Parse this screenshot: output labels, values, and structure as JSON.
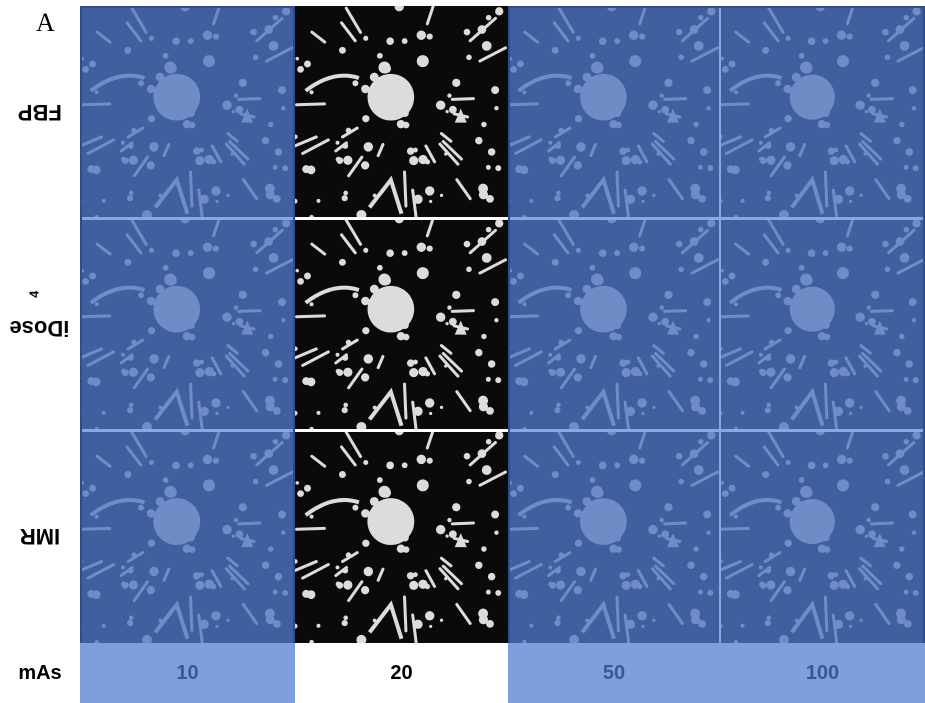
{
  "panel_letter": "A",
  "rows": [
    {
      "label": "FBP",
      "sup": ""
    },
    {
      "label": "iDose",
      "sup": "4"
    },
    {
      "label": "IMR",
      "sup": ""
    }
  ],
  "x_axis_label": "mAs",
  "columns": [
    {
      "label": "10",
      "highlighted": false
    },
    {
      "label": "20",
      "highlighted": true
    },
    {
      "label": "50",
      "highlighted": false
    },
    {
      "label": "100",
      "highlighted": false
    }
  ],
  "colors": {
    "overlay_fill": "#3f5f9f",
    "feature_tint": "#7f9bd3",
    "overlay_border": "#8aa8e0",
    "label_bg": "#7f9fdc",
    "label_text": "#3a5699",
    "highlight_text": "#000000",
    "ct_background": "#0a0a0a",
    "ct_feature": "#e8e8e8"
  }
}
